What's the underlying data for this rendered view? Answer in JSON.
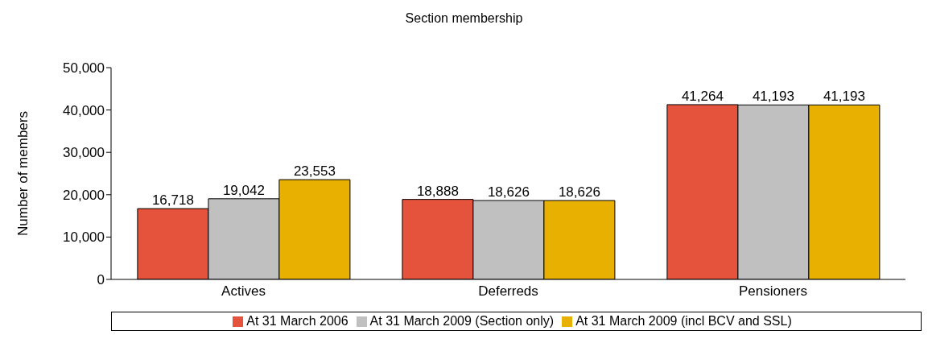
{
  "chart_data": {
    "type": "bar",
    "title": "Section membership",
    "ylabel": "Number of members",
    "categories": [
      "Actives",
      "Deferreds",
      "Pensioners"
    ],
    "series": [
      {
        "name": "At 31 March 2006",
        "color": "#e5533c",
        "values": [
          16718,
          18888,
          41264
        ],
        "value_labels": [
          "16,718",
          "18,888",
          "41,264"
        ]
      },
      {
        "name": "At 31 March 2009 (Section only)",
        "color": "#c0c0c0",
        "values": [
          19042,
          18626,
          41193
        ],
        "value_labels": [
          "19,042",
          "18,626",
          "41,193"
        ]
      },
      {
        "name": "At 31 March 2009 (incl BCV and SSL)",
        "color": "#e8b000",
        "values": [
          23553,
          18626,
          41193
        ],
        "value_labels": [
          "23,553",
          "18,626",
          "41,193"
        ]
      }
    ],
    "ylim": [
      0,
      50000
    ],
    "yticks": [
      0,
      {
        "value": 10000,
        "label": "10,000"
      },
      {
        "value": 20000,
        "label": "20,000"
      },
      {
        "value": 30000,
        "label": "30,000"
      },
      {
        "value": 40000,
        "label": "40,000"
      },
      {
        "value": 50000,
        "label": "50,000"
      }
    ],
    "grid": false,
    "legend": "bottom"
  }
}
